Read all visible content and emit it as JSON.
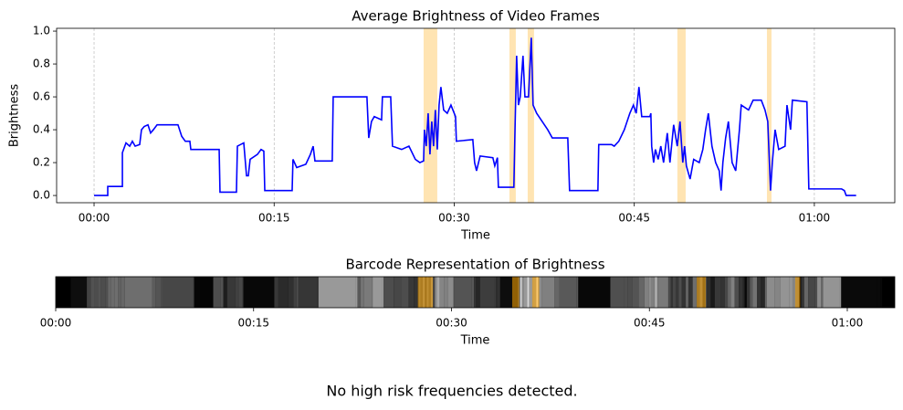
{
  "chart_data": [
    {
      "type": "line",
      "title": "Average Brightness of Video Frames",
      "xlabel": "Time",
      "ylabel": "Brightness",
      "color": "#0000ff",
      "x": [
        0,
        1.14,
        1.14,
        2.36,
        2.36,
        2.66,
        2.97,
        3.19,
        3.42,
        3.8,
        3.95,
        4.18,
        4.49,
        4.71,
        4.94,
        5.25,
        6.99,
        7.3,
        7.6,
        7.98,
        8.06,
        10.42,
        10.49,
        11.86,
        11.94,
        12.47,
        12.7,
        12.85,
        13.0,
        13.61,
        13.91,
        14.14,
        14.22,
        16.5,
        16.57,
        16.88,
        17.64,
        18.02,
        18.25,
        18.4,
        19.84,
        19.92,
        22.73,
        22.88,
        23.11,
        23.34,
        23.95,
        24.02,
        24.71,
        24.86,
        25.62,
        26.23,
        26.76,
        27.14,
        27.45,
        27.52,
        27.67,
        27.83,
        27.98,
        28.13,
        28.28,
        28.43,
        28.59,
        28.74,
        28.89,
        29.12,
        29.42,
        29.73,
        30.11,
        30.18,
        31.55,
        31.7,
        31.86,
        32.16,
        33.22,
        33.38,
        33.6,
        33.68,
        34.97,
        35.05,
        35.2,
        35.35,
        35.5,
        35.73,
        35.89,
        36.19,
        36.42,
        36.57,
        36.87,
        37.79,
        38.17,
        39.46,
        39.61,
        41.97,
        42.04,
        43.11,
        43.33,
        43.71,
        44.17,
        44.63,
        44.93,
        45.16,
        45.39,
        45.62,
        46.3,
        46.38,
        46.45,
        46.61,
        46.76,
        46.99,
        47.21,
        47.44,
        47.75,
        47.97,
        48.28,
        48.58,
        48.81,
        49.04,
        49.19,
        49.34,
        49.65,
        49.95,
        50.41,
        50.71,
        50.94,
        51.17,
        51.47,
        51.78,
        52.08,
        52.23,
        52.38,
        52.61,
        52.84,
        53.15,
        53.45,
        53.76,
        53.91,
        54.52,
        54.9,
        55.58,
        55.89,
        56.12,
        56.35,
        56.5,
        56.73,
        57.03,
        57.56,
        57.72,
        58.02,
        58.17,
        59.38,
        59.54,
        62.27,
        62.5,
        62.65,
        63.48
      ],
      "values": [
        0,
        0,
        0.055,
        0.055,
        0.26,
        0.32,
        0.3,
        0.33,
        0.3,
        0.31,
        0.4,
        0.42,
        0.43,
        0.38,
        0.4,
        0.43,
        0.43,
        0.36,
        0.33,
        0.33,
        0.28,
        0.28,
        0.02,
        0.02,
        0.3,
        0.32,
        0.12,
        0.12,
        0.22,
        0.25,
        0.28,
        0.27,
        0.03,
        0.03,
        0.22,
        0.17,
        0.19,
        0.25,
        0.3,
        0.21,
        0.21,
        0.6,
        0.6,
        0.35,
        0.45,
        0.48,
        0.46,
        0.6,
        0.6,
        0.3,
        0.28,
        0.3,
        0.22,
        0.2,
        0.21,
        0.4,
        0.3,
        0.5,
        0.25,
        0.45,
        0.3,
        0.52,
        0.28,
        0.55,
        0.66,
        0.52,
        0.5,
        0.55,
        0.48,
        0.33,
        0.34,
        0.2,
        0.15,
        0.24,
        0.23,
        0.18,
        0.23,
        0.05,
        0.05,
        0.35,
        0.85,
        0.55,
        0.6,
        0.85,
        0.6,
        0.6,
        0.96,
        0.55,
        0.5,
        0.4,
        0.35,
        0.35,
        0.03,
        0.03,
        0.31,
        0.31,
        0.3,
        0.33,
        0.4,
        0.5,
        0.55,
        0.5,
        0.66,
        0.48,
        0.48,
        0.5,
        0.3,
        0.2,
        0.28,
        0.22,
        0.3,
        0.2,
        0.38,
        0.2,
        0.43,
        0.3,
        0.45,
        0.2,
        0.3,
        0.18,
        0.1,
        0.22,
        0.2,
        0.28,
        0.4,
        0.5,
        0.3,
        0.2,
        0.15,
        0.03,
        0.2,
        0.35,
        0.45,
        0.2,
        0.15,
        0.4,
        0.55,
        0.52,
        0.58,
        0.58,
        0.52,
        0.45,
        0.03,
        0.2,
        0.4,
        0.28,
        0.3,
        0.55,
        0.4,
        0.58,
        0.57,
        0.04,
        0.04,
        0.03,
        0,
        0
      ],
      "highlights": [
        [
          27.45,
          28.59
        ],
        [
          34.6,
          35.13
        ],
        [
          36.12,
          36.65
        ],
        [
          48.59,
          49.28
        ],
        [
          56.05,
          56.43
        ]
      ],
      "highlight_color": "#ffa500",
      "xlim": [
        -3.12,
        66.7
      ],
      "ylim": [
        -0.044,
        1.017
      ],
      "xticks": [
        {
          "value": 0,
          "label": "00:00"
        },
        {
          "value": 15,
          "label": "00:15"
        },
        {
          "value": 30,
          "label": "00:30"
        },
        {
          "value": 45,
          "label": "00:45"
        },
        {
          "value": 60,
          "label": "01:00"
        }
      ],
      "yticks": [
        {
          "value": 0,
          "label": "0.0"
        },
        0.2,
        0.4,
        0.6,
        0.8,
        {
          "value": 1,
          "label": "1.0"
        }
      ],
      "grid": "x"
    },
    {
      "type": "barcode",
      "title": "Barcode Representation of Brightness",
      "xlabel": "Time",
      "xlim": [
        0,
        63.6
      ],
      "xticks": [
        {
          "value": 0,
          "label": "00:00"
        },
        {
          "value": 15,
          "label": "00:15"
        },
        {
          "value": 30,
          "label": "00:30"
        },
        {
          "value": 45,
          "label": "00:45"
        },
        {
          "value": 60,
          "label": "01:00"
        }
      ]
    }
  ],
  "message": "No high risk frequencies detected."
}
